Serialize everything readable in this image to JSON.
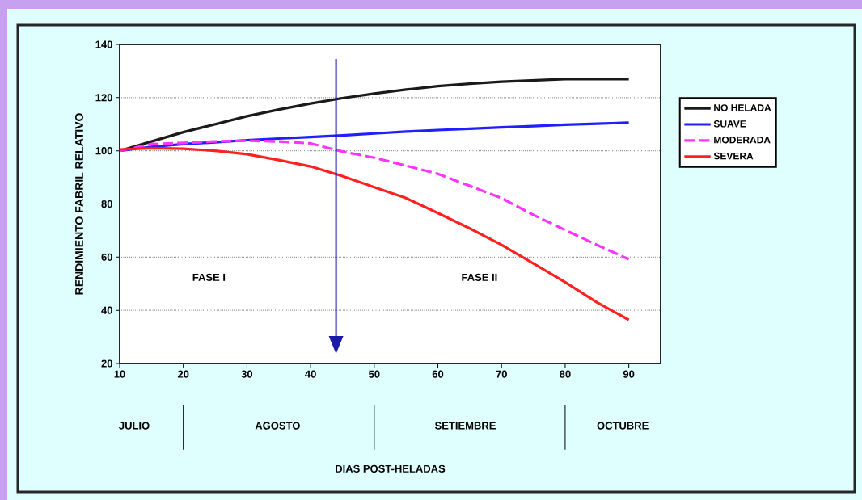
{
  "chart_data": {
    "type": "line",
    "ylabel": "RENDIMIENTO FABRIL RELATIVO",
    "x": [
      10,
      15,
      20,
      25,
      30,
      35,
      40,
      45,
      50,
      55,
      60,
      65,
      70,
      75,
      80,
      85,
      90
    ],
    "series": [
      {
        "name": "NO HELADA",
        "color": "#1a1a1a",
        "values": [
          100,
          103.5,
          107,
          110,
          113,
          115.5,
          117.8,
          119.8,
          121.5,
          123,
          124.3,
          125.2,
          126,
          126.5,
          127,
          127,
          127
        ]
      },
      {
        "name": "SUAVE",
        "color": "#1f1fff",
        "values": [
          100,
          101.5,
          102.5,
          103.2,
          104,
          104.6,
          105.2,
          105.8,
          106.5,
          107.2,
          107.8,
          108.3,
          108.8,
          109.3,
          109.8,
          110.2,
          110.6
        ]
      },
      {
        "name": "MODERADA",
        "color": "#ff33ff",
        "line_style": "dashed",
        "values": [
          100,
          102.5,
          103,
          103.5,
          103.8,
          103.5,
          102.8,
          99.7,
          97.4,
          94.4,
          91.3,
          86.8,
          82.2,
          75.9,
          70.2,
          64.6,
          59.2
        ]
      },
      {
        "name": "SEVERA",
        "color": "#ff2020",
        "values": [
          100.5,
          101,
          100.8,
          100,
          98.7,
          96.5,
          94.1,
          90.5,
          86.3,
          82.2,
          76.6,
          70.8,
          64.6,
          57.6,
          50.6,
          43,
          36.4
        ]
      }
    ],
    "xlim": [
      10,
      95
    ],
    "ylim": [
      20,
      140
    ],
    "xticks": [
      10,
      20,
      30,
      40,
      50,
      60,
      70,
      80,
      90
    ],
    "yticks": [
      20,
      40,
      60,
      80,
      100,
      120,
      140
    ],
    "grid": "y",
    "legend": "right",
    "marker": "none",
    "line_style": "solid",
    "ref_lines": [
      {
        "axis": "x",
        "value": 44,
        "color": "#1a1aa6"
      }
    ],
    "annotations": [
      "FASE  I",
      "FASE II",
      "JULIO",
      "AGOSTO",
      "SETIEMBRE",
      "OCTUBRE",
      "DIAS POST-HELADAS"
    ]
  }
}
